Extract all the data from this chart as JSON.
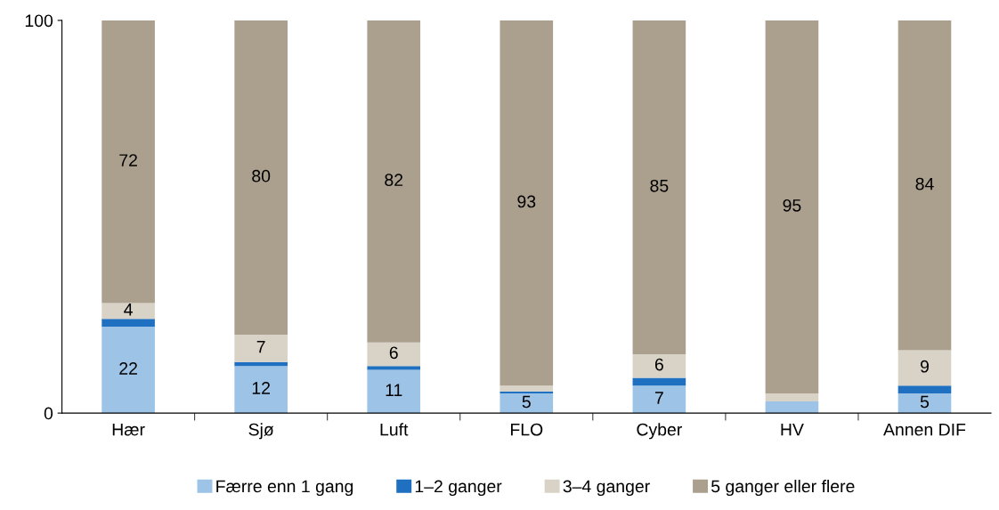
{
  "chart_data": {
    "type": "bar",
    "stacked": true,
    "categories": [
      "Hær",
      "Sjø",
      "Luft",
      "FLO",
      "Cyber",
      "HV",
      "Annen DIF"
    ],
    "series": [
      {
        "name": "Færre enn 1 gang",
        "color": "#9dc3e6",
        "values": [
          22,
          12,
          11,
          5,
          7,
          3,
          5
        ],
        "value_labels": [
          "22",
          "12",
          "11",
          "5",
          "7",
          null,
          "5"
        ]
      },
      {
        "name": "1–2 ganger",
        "color": "#1f70c1",
        "values": [
          2,
          1,
          1,
          0.5,
          2,
          0,
          2
        ],
        "value_labels": [
          null,
          null,
          null,
          null,
          null,
          null,
          null
        ]
      },
      {
        "name": "3–4 ganger",
        "color": "#d9d3c7",
        "values": [
          4,
          7,
          6,
          1.5,
          6,
          2,
          9
        ],
        "value_labels": [
          "4",
          "7",
          "6",
          null,
          "6",
          null,
          "9"
        ]
      },
      {
        "name": "5 ganger eller flere",
        "color": "#ab9f8e",
        "values": [
          72,
          80,
          82,
          93,
          85,
          95,
          84
        ],
        "value_labels": [
          "72",
          "80",
          "82",
          "93",
          "85",
          "95",
          "84"
        ]
      }
    ],
    "ylim": [
      0,
      100
    ],
    "yticks": [
      0,
      100
    ],
    "grid": false,
    "legend": "bottom"
  }
}
